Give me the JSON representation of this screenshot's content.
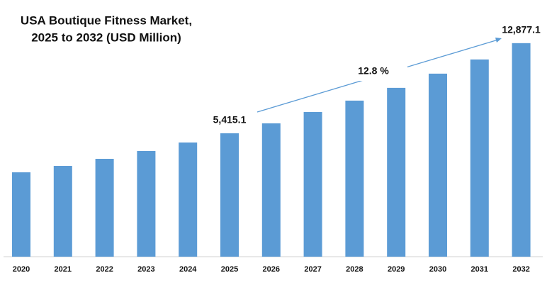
{
  "chart_data": {
    "type": "bar",
    "title": [
      "USA Boutique Fitness Market,",
      "2025 to 2032 (USD Million)"
    ],
    "categories": [
      "2020",
      "2021",
      "2022",
      "2023",
      "2024",
      "2025",
      "2026",
      "2027",
      "2028",
      "2029",
      "2030",
      "2031",
      "2032"
    ],
    "values": [
      2183,
      2712,
      3300,
      3946,
      4652,
      5415.1,
      6238,
      7178,
      8118,
      9176,
      10351,
      11526,
      12877.1
    ],
    "value_labels": [
      null,
      null,
      null,
      null,
      null,
      "5,415.1",
      null,
      null,
      null,
      null,
      null,
      null,
      "12,877.1"
    ],
    "annotation": "12.8 %",
    "color": "#5b9bd5",
    "ylim": [
      -4800,
      14100
    ]
  }
}
